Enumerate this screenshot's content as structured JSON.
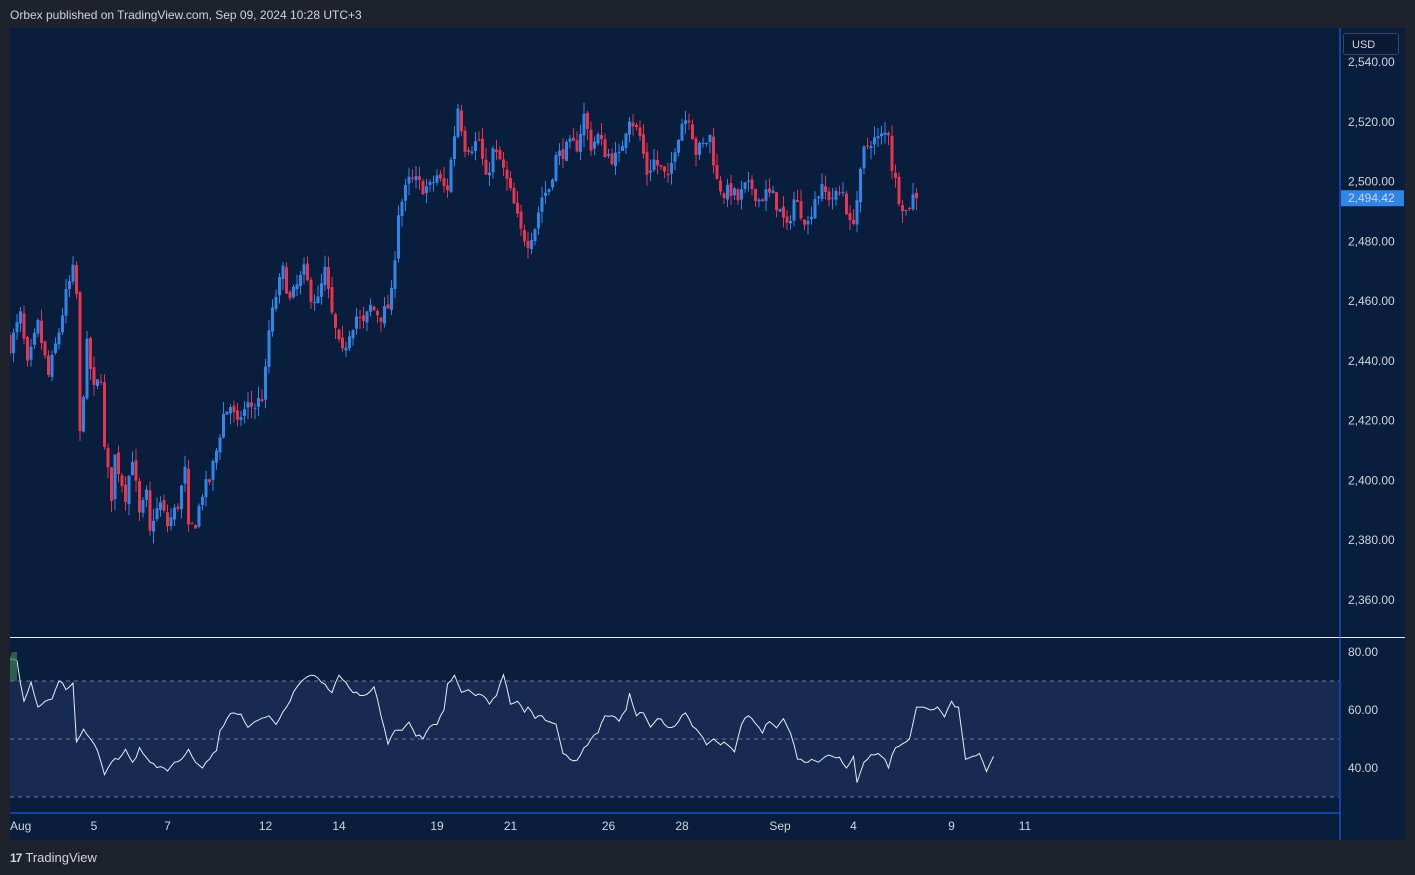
{
  "header": {
    "published_text": "Orbex published on TradingView.com, Sep 09, 2024 10:28 UTC+3"
  },
  "footer": {
    "brand_logo": "17",
    "brand_name": "TradingView"
  },
  "price_axis": {
    "currency": "USD",
    "ticks": [
      "2,540.00",
      "2,520.00",
      "2,500.00",
      "2,480.00",
      "2,460.00",
      "2,440.00",
      "2,420.00",
      "2,400.00",
      "2,380.00",
      "2,360.00"
    ],
    "tick_values": [
      2540,
      2520,
      2500,
      2480,
      2460,
      2440,
      2420,
      2400,
      2380,
      2360
    ],
    "last_price_label": "2,494.42",
    "last_price": 2494.42
  },
  "rsi_axis": {
    "ticks": [
      "80.00",
      "60.00",
      "40.00"
    ],
    "tick_values": [
      80,
      60,
      40
    ],
    "band_upper": 70,
    "band_mid": 50,
    "band_lower": 30
  },
  "time_axis": {
    "labels": [
      "Aug",
      "5",
      "7",
      "12",
      "14",
      "19",
      "21",
      "26",
      "28",
      "Sep",
      "4",
      "9",
      "11"
    ],
    "label_bar_index": [
      0,
      24,
      45,
      73,
      94,
      122,
      143,
      171,
      192,
      220,
      241,
      269,
      290
    ]
  },
  "colors": {
    "background": "#091d3c",
    "up": "#2f86e6",
    "down": "#e8344e",
    "rsi_line": "#e8ecf2",
    "rsi_band": "#172a52",
    "price_label_bg": "#2f86e6",
    "axis_line": "#2962ff"
  },
  "chart_data": {
    "type": "candlestick",
    "price_range": [
      2355,
      2545
    ],
    "rsi_range": [
      27,
      83
    ],
    "bars_per_day": 6,
    "close_path": [
      [
        0,
        2445
      ],
      [
        3,
        2455
      ],
      [
        5,
        2438
      ],
      [
        8,
        2452
      ],
      [
        11,
        2435
      ],
      [
        14,
        2450
      ],
      [
        16,
        2462
      ],
      [
        18,
        2470
      ],
      [
        19,
        2462
      ],
      [
        20,
        2415
      ],
      [
        22,
        2445
      ],
      [
        24,
        2430
      ],
      [
        26,
        2435
      ],
      [
        27,
        2410
      ],
      [
        29,
        2395
      ],
      [
        30,
        2408
      ],
      [
        33,
        2395
      ],
      [
        35,
        2408
      ],
      [
        37,
        2388
      ],
      [
        39,
        2395
      ],
      [
        40,
        2382
      ],
      [
        41,
        2388
      ],
      [
        43,
        2392
      ],
      [
        45,
        2385
      ],
      [
        48,
        2392
      ],
      [
        50,
        2403
      ],
      [
        51,
        2383
      ],
      [
        53,
        2386
      ],
      [
        55,
        2396
      ],
      [
        57,
        2400
      ],
      [
        59,
        2410
      ],
      [
        61,
        2422
      ],
      [
        63,
        2425
      ],
      [
        65,
        2418
      ],
      [
        66,
        2422
      ],
      [
        68,
        2425
      ],
      [
        70,
        2425
      ],
      [
        72,
        2428
      ],
      [
        73,
        2436
      ],
      [
        74,
        2450
      ],
      [
        76,
        2462
      ],
      [
        78,
        2470
      ],
      [
        80,
        2460
      ],
      [
        82,
        2465
      ],
      [
        84,
        2470
      ],
      [
        86,
        2462
      ],
      [
        88,
        2460
      ],
      [
        90,
        2470
      ],
      [
        92,
        2455
      ],
      [
        94,
        2445
      ],
      [
        95,
        2442
      ],
      [
        97,
        2450
      ],
      [
        99,
        2455
      ],
      [
        101,
        2452
      ],
      [
        103,
        2458
      ],
      [
        106,
        2455
      ],
      [
        108,
        2458
      ],
      [
        109,
        2462
      ],
      [
        111,
        2490
      ],
      [
        113,
        2497
      ],
      [
        114,
        2500
      ],
      [
        116,
        2500
      ],
      [
        118,
        2498
      ],
      [
        120,
        2498
      ],
      [
        122,
        2502
      ],
      [
        124,
        2498
      ],
      [
        125,
        2498
      ],
      [
        126,
        2507
      ],
      [
        128,
        2525
      ],
      [
        130,
        2512
      ],
      [
        132,
        2512
      ],
      [
        134,
        2514
      ],
      [
        136,
        2500
      ],
      [
        138,
        2510
      ],
      [
        140,
        2507
      ],
      [
        142,
        2500
      ],
      [
        144,
        2492
      ],
      [
        146,
        2483
      ],
      [
        148,
        2480
      ],
      [
        150,
        2485
      ],
      [
        152,
        2495
      ],
      [
        154,
        2498
      ],
      [
        156,
        2508
      ],
      [
        158,
        2510
      ],
      [
        160,
        2512
      ],
      [
        162,
        2512
      ],
      [
        164,
        2522
      ],
      [
        166,
        2512
      ],
      [
        168,
        2515
      ],
      [
        170,
        2510
      ],
      [
        172,
        2508
      ],
      [
        174,
        2508
      ],
      [
        176,
        2518
      ],
      [
        177,
        2522
      ],
      [
        180,
        2515
      ],
      [
        182,
        2503
      ],
      [
        184,
        2507
      ],
      [
        186,
        2504
      ],
      [
        188,
        2500
      ],
      [
        190,
        2512
      ],
      [
        192,
        2520
      ],
      [
        194,
        2522
      ],
      [
        196,
        2510
      ],
      [
        198,
        2512
      ],
      [
        200,
        2515
      ],
      [
        202,
        2500
      ],
      [
        204,
        2496
      ],
      [
        206,
        2497
      ],
      [
        208,
        2494
      ],
      [
        210,
        2498
      ],
      [
        212,
        2498
      ],
      [
        214,
        2494
      ],
      [
        216,
        2496
      ],
      [
        218,
        2495
      ],
      [
        220,
        2490
      ],
      [
        222,
        2484
      ],
      [
        224,
        2494
      ],
      [
        226,
        2490
      ],
      [
        228,
        2486
      ],
      [
        230,
        2495
      ],
      [
        232,
        2497
      ],
      [
        234,
        2495
      ],
      [
        236,
        2495
      ],
      [
        238,
        2497
      ],
      [
        240,
        2485
      ],
      [
        241,
        2488
      ],
      [
        242,
        2494
      ],
      [
        244,
        2510
      ],
      [
        246,
        2514
      ],
      [
        248,
        2514
      ],
      [
        250,
        2516
      ],
      [
        251,
        2517
      ],
      [
        252,
        2505
      ],
      [
        254,
        2495
      ],
      [
        256,
        2490
      ],
      [
        258,
        2495
      ],
      [
        259,
        2494.42
      ]
    ],
    "rsi_path": [
      [
        0,
        78
      ],
      [
        2,
        77
      ],
      [
        4,
        63
      ],
      [
        6,
        69
      ],
      [
        8,
        61
      ],
      [
        10,
        63
      ],
      [
        12,
        64
      ],
      [
        14,
        70
      ],
      [
        16,
        67
      ],
      [
        18,
        69
      ],
      [
        19,
        49
      ],
      [
        21,
        53
      ],
      [
        23,
        50
      ],
      [
        25,
        46
      ],
      [
        27,
        38
      ],
      [
        29,
        42
      ],
      [
        31,
        43
      ],
      [
        33,
        46
      ],
      [
        35,
        42
      ],
      [
        37,
        47
      ],
      [
        38,
        45
      ],
      [
        40,
        42
      ],
      [
        42,
        41
      ],
      [
        44,
        40
      ],
      [
        45,
        39
      ],
      [
        47,
        42
      ],
      [
        49,
        43
      ],
      [
        51,
        46
      ],
      [
        53,
        42
      ],
      [
        55,
        40
      ],
      [
        57,
        44
      ],
      [
        59,
        46
      ],
      [
        60,
        52
      ],
      [
        62,
        57
      ],
      [
        64,
        59
      ],
      [
        66,
        58
      ],
      [
        68,
        54
      ],
      [
        70,
        56
      ],
      [
        72,
        57
      ],
      [
        74,
        58
      ],
      [
        76,
        55
      ],
      [
        78,
        59
      ],
      [
        80,
        63
      ],
      [
        82,
        68
      ],
      [
        84,
        71
      ],
      [
        86,
        72
      ],
      [
        88,
        71
      ],
      [
        90,
        68
      ],
      [
        92,
        66
      ],
      [
        94,
        72
      ],
      [
        96,
        69
      ],
      [
        98,
        66
      ],
      [
        100,
        65
      ],
      [
        102,
        65
      ],
      [
        104,
        68
      ],
      [
        106,
        58
      ],
      [
        108,
        49
      ],
      [
        110,
        53
      ],
      [
        112,
        53
      ],
      [
        114,
        56
      ],
      [
        116,
        51
      ],
      [
        118,
        50
      ],
      [
        120,
        55
      ],
      [
        122,
        55
      ],
      [
        124,
        60
      ],
      [
        125,
        69
      ],
      [
        127,
        72
      ],
      [
        129,
        66
      ],
      [
        131,
        67
      ],
      [
        133,
        65
      ],
      [
        135,
        66
      ],
      [
        137,
        62
      ],
      [
        139,
        65
      ],
      [
        141,
        73
      ],
      [
        143,
        62
      ],
      [
        145,
        63
      ],
      [
        147,
        60
      ],
      [
        148,
        61
      ],
      [
        150,
        58
      ],
      [
        152,
        58
      ],
      [
        154,
        56
      ],
      [
        156,
        55
      ],
      [
        158,
        45
      ],
      [
        160,
        43
      ],
      [
        162,
        42
      ],
      [
        164,
        47
      ],
      [
        166,
        50
      ],
      [
        168,
        53
      ],
      [
        170,
        58
      ],
      [
        172,
        58
      ],
      [
        174,
        57
      ],
      [
        176,
        60
      ],
      [
        177,
        65
      ],
      [
        179,
        58
      ],
      [
        181,
        59
      ],
      [
        183,
        54
      ],
      [
        185,
        57
      ],
      [
        187,
        55
      ],
      [
        189,
        53
      ],
      [
        191,
        56
      ],
      [
        193,
        59
      ],
      [
        195,
        55
      ],
      [
        197,
        52
      ],
      [
        199,
        48
      ],
      [
        201,
        50
      ],
      [
        203,
        48
      ],
      [
        205,
        48
      ],
      [
        207,
        46
      ],
      [
        209,
        55
      ],
      [
        211,
        58
      ],
      [
        213,
        56
      ],
      [
        215,
        52
      ],
      [
        217,
        56
      ],
      [
        219,
        54
      ],
      [
        221,
        57
      ],
      [
        223,
        52
      ],
      [
        225,
        44
      ],
      [
        227,
        42
      ],
      [
        229,
        43
      ],
      [
        231,
        42
      ],
      [
        233,
        44
      ],
      [
        235,
        44
      ],
      [
        237,
        43
      ],
      [
        239,
        40
      ],
      [
        241,
        44
      ],
      [
        242,
        35
      ],
      [
        244,
        42
      ],
      [
        246,
        44
      ],
      [
        248,
        45
      ],
      [
        250,
        43
      ],
      [
        251,
        40
      ],
      [
        253,
        47
      ],
      [
        255,
        48
      ],
      [
        257,
        50
      ],
      [
        259,
        61
      ],
      [
        261,
        61
      ],
      [
        263,
        60
      ],
      [
        265,
        61
      ],
      [
        267,
        58
      ],
      [
        269,
        63
      ],
      [
        271,
        61
      ],
      [
        273,
        43
      ],
      [
        275,
        44
      ],
      [
        277,
        45
      ],
      [
        279,
        39
      ],
      [
        281,
        44
      ]
    ]
  }
}
